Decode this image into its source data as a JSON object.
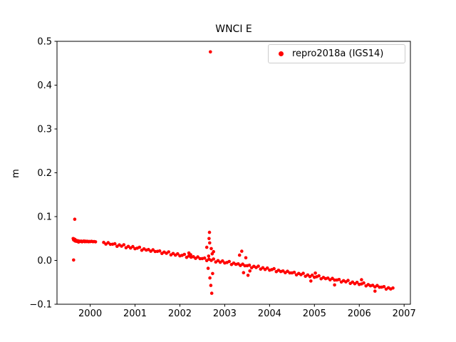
{
  "figure": {
    "title": "WNCI E",
    "ylabel": "m"
  },
  "legend": {
    "label": "repro2018a (IGS14)",
    "marker_color": "#ff0000"
  },
  "chart_data": {
    "type": "scatter",
    "title": "WNCI E",
    "xlabel": "",
    "ylabel": "m",
    "xlim": [
      1999.26,
      2007.14
    ],
    "ylim": [
      -0.1,
      0.5
    ],
    "grid": false,
    "legend_position": "upper right",
    "xticks": [
      2000,
      2001,
      2002,
      2003,
      2004,
      2005,
      2006,
      2007
    ],
    "xtick_labels": [
      "2000",
      "2001",
      "2002",
      "2003",
      "2004",
      "2005",
      "2006",
      "2007"
    ],
    "yticks": [
      -0.1,
      0.0,
      0.1,
      0.2,
      0.3,
      0.4,
      0.5
    ],
    "ytick_labels": [
      "−0.1",
      "0.0",
      "0.1",
      "0.2",
      "0.3",
      "0.4",
      "0.5"
    ],
    "series": [
      {
        "name": "repro2018a (IGS14)",
        "color": "#ff0000",
        "marker": "dot",
        "points": [
          [
            1999.62,
            0.05
          ],
          [
            1999.63,
            0.047
          ],
          [
            1999.64,
            0.049
          ],
          [
            1999.65,
            0.0455
          ],
          [
            1999.66,
            0.048
          ],
          [
            1999.67,
            0.044
          ],
          [
            1999.68,
            0.046
          ],
          [
            1999.7,
            0.0435
          ],
          [
            1999.72,
            0.045
          ],
          [
            1999.74,
            0.042
          ],
          [
            1999.76,
            0.044
          ],
          [
            1999.78,
            0.0432
          ],
          [
            1999.8,
            0.0441
          ],
          [
            1999.82,
            0.0425
          ],
          [
            1999.84,
            0.0436
          ],
          [
            1999.86,
            0.0442
          ],
          [
            1999.88,
            0.0428
          ],
          [
            1999.9,
            0.0438
          ],
          [
            1999.92,
            0.043
          ],
          [
            1999.94,
            0.0435
          ],
          [
            1999.96,
            0.0426
          ],
          [
            1999.98,
            0.0433
          ],
          [
            2000.0,
            0.0429
          ],
          [
            2000.03,
            0.0436
          ],
          [
            2000.06,
            0.0427
          ],
          [
            2000.09,
            0.0431
          ],
          [
            2000.12,
            0.0424
          ],
          [
            1999.63,
            0.001
          ],
          [
            1999.655,
            0.094
          ],
          [
            2000.3,
            0.0411
          ],
          [
            2000.35,
            0.0373
          ],
          [
            2000.4,
            0.0405
          ],
          [
            2000.45,
            0.0367
          ],
          [
            2000.5,
            0.0369
          ],
          [
            2000.55,
            0.038
          ],
          [
            2000.6,
            0.0322
          ],
          [
            2000.65,
            0.0354
          ],
          [
            2000.7,
            0.0326
          ],
          [
            2000.75,
            0.0358
          ],
          [
            2000.8,
            0.029
          ],
          [
            2000.85,
            0.0321
          ],
          [
            2000.9,
            0.0283
          ],
          [
            2000.95,
            0.0315
          ],
          [
            2001.0,
            0.0267
          ],
          [
            2001.05,
            0.0279
          ],
          [
            2001.1,
            0.0301
          ],
          [
            2001.15,
            0.0233
          ],
          [
            2001.2,
            0.0264
          ],
          [
            2001.25,
            0.0236
          ],
          [
            2001.3,
            0.0248
          ],
          [
            2001.35,
            0.021
          ],
          [
            2001.4,
            0.0242
          ],
          [
            2001.45,
            0.0204
          ],
          [
            2001.5,
            0.0206
          ],
          [
            2001.55,
            0.0217
          ],
          [
            2001.6,
            0.0159
          ],
          [
            2001.65,
            0.0191
          ],
          [
            2001.7,
            0.0163
          ],
          [
            2001.75,
            0.0195
          ],
          [
            2001.8,
            0.0127
          ],
          [
            2001.85,
            0.0158
          ],
          [
            2001.9,
            0.012
          ],
          [
            2001.95,
            0.0152
          ],
          [
            2002.0,
            0.0104
          ],
          [
            2002.05,
            0.0116
          ],
          [
            2002.1,
            0.0138
          ],
          [
            2002.15,
            0.007
          ],
          [
            2002.2,
            0.0101
          ],
          [
            2002.25,
            0.0073
          ],
          [
            2002.3,
            0.0085
          ],
          [
            2002.35,
            0.0047
          ],
          [
            2002.4,
            0.0079
          ],
          [
            2002.45,
            0.0041
          ],
          [
            2002.5,
            0.0043
          ],
          [
            2002.55,
            0.0054
          ],
          [
            2002.6,
            -0.0004
          ],
          [
            2002.65,
            0.0028
          ],
          [
            2002.7,
            0.0
          ],
          [
            2002.75,
            0.0032
          ],
          [
            2002.8,
            -0.0036
          ],
          [
            2002.85,
            -0.0005
          ],
          [
            2002.9,
            -0.0043
          ],
          [
            2002.95,
            -0.0011
          ],
          [
            2003.0,
            -0.0059
          ],
          [
            2003.05,
            -0.0047
          ],
          [
            2003.1,
            -0.0025
          ],
          [
            2003.15,
            -0.0093
          ],
          [
            2003.2,
            -0.0062
          ],
          [
            2003.25,
            -0.009
          ],
          [
            2003.3,
            -0.0078
          ],
          [
            2003.35,
            -0.0116
          ],
          [
            2003.4,
            -0.0084
          ],
          [
            2003.45,
            -0.0122
          ],
          [
            2003.5,
            -0.0121
          ],
          [
            2003.55,
            -0.0109
          ],
          [
            2003.6,
            -0.0167
          ],
          [
            2003.65,
            -0.0135
          ],
          [
            2003.7,
            -0.0163
          ],
          [
            2003.75,
            -0.0131
          ],
          [
            2003.8,
            -0.0199
          ],
          [
            2003.85,
            -0.0168
          ],
          [
            2003.9,
            -0.0206
          ],
          [
            2003.95,
            -0.0174
          ],
          [
            2004.0,
            -0.0222
          ],
          [
            2004.05,
            -0.021
          ],
          [
            2004.1,
            -0.0188
          ],
          [
            2004.15,
            -0.0256
          ],
          [
            2004.2,
            -0.0225
          ],
          [
            2004.25,
            -0.0253
          ],
          [
            2004.3,
            -0.0241
          ],
          [
            2004.35,
            -0.0279
          ],
          [
            2004.4,
            -0.0247
          ],
          [
            2004.45,
            -0.0285
          ],
          [
            2004.5,
            -0.0284
          ],
          [
            2004.55,
            -0.0272
          ],
          [
            2004.6,
            -0.033
          ],
          [
            2004.65,
            -0.0298
          ],
          [
            2004.7,
            -0.0326
          ],
          [
            2004.75,
            -0.0294
          ],
          [
            2004.8,
            -0.0362
          ],
          [
            2004.85,
            -0.0331
          ],
          [
            2004.9,
            -0.0369
          ],
          [
            2004.95,
            -0.0337
          ],
          [
            2005.0,
            -0.0385
          ],
          [
            2005.05,
            -0.0373
          ],
          [
            2005.1,
            -0.0351
          ],
          [
            2005.15,
            -0.0419
          ],
          [
            2005.2,
            -0.0388
          ],
          [
            2005.25,
            -0.0416
          ],
          [
            2005.3,
            -0.0404
          ],
          [
            2005.35,
            -0.0442
          ],
          [
            2005.4,
            -0.041
          ],
          [
            2005.45,
            -0.0448
          ],
          [
            2005.5,
            -0.0447
          ],
          [
            2005.55,
            -0.0435
          ],
          [
            2005.6,
            -0.0493
          ],
          [
            2005.65,
            -0.0461
          ],
          [
            2005.7,
            -0.0489
          ],
          [
            2005.75,
            -0.0457
          ],
          [
            2005.8,
            -0.0525
          ],
          [
            2005.85,
            -0.0494
          ],
          [
            2005.9,
            -0.0532
          ],
          [
            2005.95,
            -0.05
          ],
          [
            2006.0,
            -0.0548
          ],
          [
            2006.05,
            -0.0536
          ],
          [
            2006.1,
            -0.0514
          ],
          [
            2006.15,
            -0.0582
          ],
          [
            2006.2,
            -0.0551
          ],
          [
            2006.25,
            -0.0579
          ],
          [
            2006.3,
            -0.0567
          ],
          [
            2006.35,
            -0.0605
          ],
          [
            2006.4,
            -0.0573
          ],
          [
            2006.45,
            -0.0611
          ],
          [
            2006.5,
            -0.061
          ],
          [
            2006.55,
            -0.0598
          ],
          [
            2006.6,
            -0.0656
          ],
          [
            2006.65,
            -0.0624
          ],
          [
            2006.7,
            -0.0652
          ],
          [
            2006.75,
            -0.063
          ],
          [
            2002.68,
            0.476
          ],
          [
            2002.6,
            0.03
          ],
          [
            2002.63,
            -0.018
          ],
          [
            2002.65,
            0.05
          ],
          [
            2002.66,
            0.064
          ],
          [
            2002.665,
            0.04
          ],
          [
            2002.67,
            -0.04
          ],
          [
            2002.69,
            -0.057
          ],
          [
            2002.7,
            0.027
          ],
          [
            2002.71,
            -0.075
          ],
          [
            2002.72,
            0.015
          ],
          [
            2002.73,
            -0.03
          ],
          [
            2002.75,
            0.02
          ],
          [
            2002.64,
            0.01
          ],
          [
            2003.33,
            0.012
          ],
          [
            2003.38,
            0.021
          ],
          [
            2003.42,
            -0.028
          ],
          [
            2003.47,
            0.006
          ],
          [
            2003.52,
            -0.034
          ],
          [
            2003.56,
            -0.024
          ],
          [
            2002.2,
            0.017
          ],
          [
            2002.24,
            0.013
          ],
          [
            2004.92,
            -0.047
          ],
          [
            2005.02,
            -0.029
          ],
          [
            2005.45,
            -0.056
          ],
          [
            2006.05,
            -0.044
          ],
          [
            2006.35,
            -0.07
          ]
        ]
      }
    ]
  }
}
